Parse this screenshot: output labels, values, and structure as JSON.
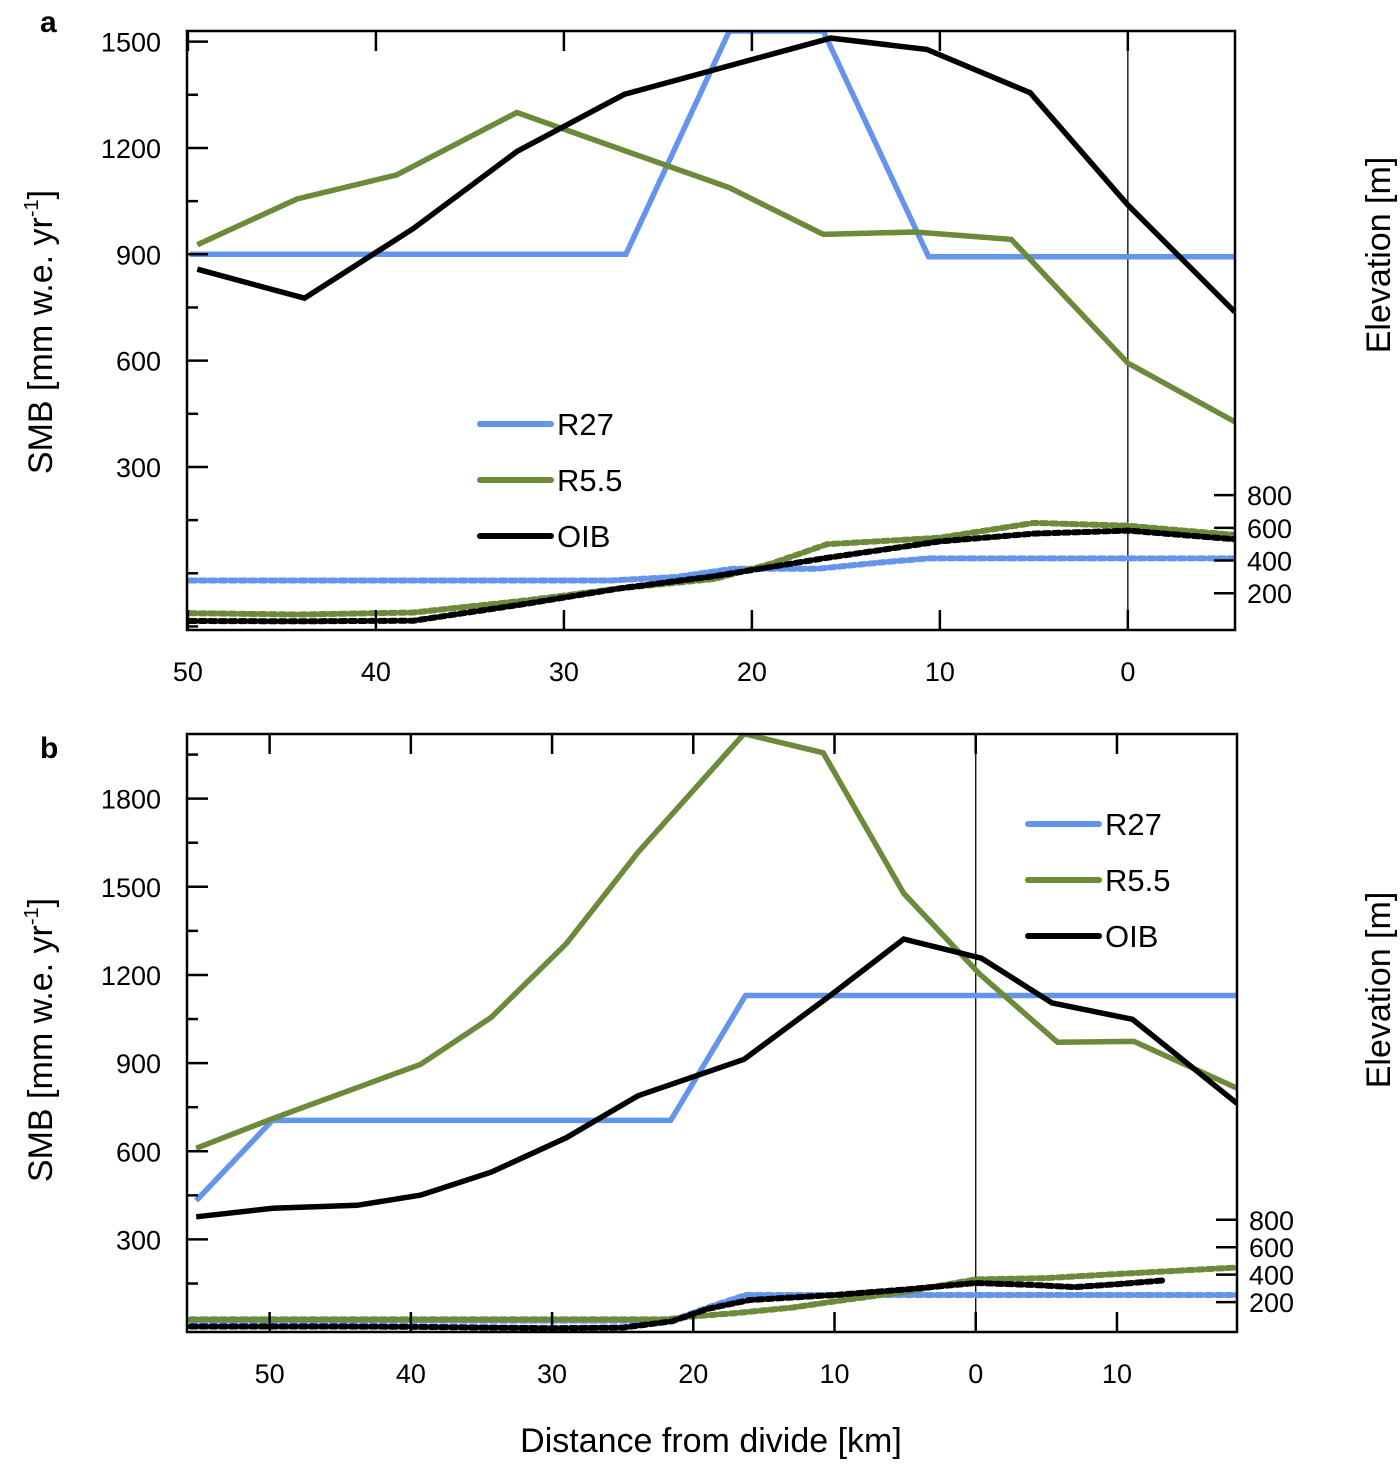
{
  "colors": {
    "R27": "#6495ED",
    "R5.5": "#6B8A3A",
    "OIB": "#000000"
  },
  "chart_data": [
    {
      "panel": "a",
      "type": "line",
      "xlabel": "",
      "ylabel": "SMB [mm w.e. yr",
      "ylabel_sup": "-1",
      "ylabel_close": "]",
      "y2label": "Elevation [m]",
      "x_note": "x = distance from divide in km; positive to the left of the divide line, negative to the right",
      "xlim": [
        50.05,
        -5.7
      ],
      "ylim": [
        -160,
        1530
      ],
      "y2lim": [
        -25,
        3640
      ],
      "xticks": [
        {
          "value": 50,
          "label": "50"
        },
        {
          "value": 40,
          "label": "40"
        },
        {
          "value": 30,
          "label": "30"
        },
        {
          "value": 20,
          "label": "20"
        },
        {
          "value": 10,
          "label": "10"
        },
        {
          "value": 0,
          "label": "0"
        }
      ],
      "yticks": [
        300,
        600,
        900,
        1200,
        1500
      ],
      "yminor": 150,
      "y2ticks": [
        200,
        400,
        600,
        800
      ],
      "divide_x": 0,
      "legend": {
        "position": "center-left",
        "entries": [
          "R27",
          "R5.5",
          "OIB"
        ]
      },
      "series": [
        {
          "name": "R27",
          "axis": "smb",
          "style": "solid",
          "x": [
            49.9,
            26.7,
            21.2,
            16.2,
            10.6,
            -5.7
          ],
          "y": [
            900,
            900,
            1530,
            1530,
            893,
            893
          ]
        },
        {
          "name": "R5.5",
          "axis": "smb",
          "style": "solid",
          "x": [
            49.5,
            44.2,
            38.9,
            32.5,
            21.2,
            16.2,
            11.3,
            6.2,
            0.0,
            -5.7
          ],
          "y": [
            927,
            1056,
            1124,
            1300,
            1088,
            956,
            963,
            942,
            593,
            427
          ]
        },
        {
          "name": "OIB",
          "axis": "smb",
          "style": "solid",
          "x": [
            49.5,
            43.8,
            38.0,
            32.5,
            26.8,
            15.8,
            10.7,
            5.2,
            0.0,
            -5.7
          ],
          "y": [
            858,
            776,
            973,
            1190,
            1351,
            1510,
            1478,
            1356,
            1039,
            737
          ]
        },
        {
          "name": "R27",
          "axis": "elevation",
          "style": "dashed",
          "x": [
            49.9,
            27.5,
            24.0,
            21.0,
            16.5,
            13.0,
            10.6,
            -5.7
          ],
          "y": [
            278,
            278,
            300,
            350,
            350,
            390,
            413,
            413
          ]
        },
        {
          "name": "R5.5",
          "axis": "elevation",
          "style": "dashed",
          "x": [
            49.9,
            44.0,
            38.0,
            32.0,
            27.0,
            22.0,
            19.0,
            16.0,
            10.0,
            5.0,
            0.0,
            -5.7
          ],
          "y": [
            78,
            70,
            82,
            156,
            230,
            287,
            380,
            500,
            540,
            630,
            613,
            556
          ]
        },
        {
          "name": "OIB",
          "axis": "elevation",
          "style": "dashed",
          "x": [
            49.9,
            44.0,
            38.0,
            32.0,
            27.0,
            22.0,
            16.0,
            10.0,
            5.0,
            0.0,
            -5.7
          ],
          "y": [
            30,
            28,
            32,
            135,
            230,
            304,
            417,
            517,
            565,
            583,
            530
          ]
        }
      ]
    },
    {
      "panel": "b",
      "type": "line",
      "xlabel": "Distance from divide [km]",
      "ylabel": "SMB [mm w.e. yr",
      "ylabel_sup": "-1",
      "ylabel_close": "]",
      "y2label": "Elevation [m]",
      "x_note": "x = distance from divide in km; positive to the left of the divide line, negative to the right",
      "xlim": [
        55.85,
        -18.5
      ],
      "ylim": [
        -15,
        2020
      ],
      "y2lim": [
        -18,
        4340
      ],
      "xticks": [
        {
          "value": 50,
          "label": "50"
        },
        {
          "value": 40,
          "label": "40"
        },
        {
          "value": 30,
          "label": "30"
        },
        {
          "value": 20,
          "label": "20"
        },
        {
          "value": 10,
          "label": "10"
        },
        {
          "value": 0,
          "label": "0"
        },
        {
          "value": -10,
          "label": "10"
        }
      ],
      "yticks": [
        300,
        600,
        900,
        1200,
        1500,
        1800
      ],
      "yminor": 150,
      "y2ticks": [
        200,
        400,
        600,
        800
      ],
      "divide_x": 0,
      "legend": {
        "position": "upper-right",
        "entries": [
          "R27",
          "R5.5",
          "OIB"
        ]
      },
      "series": [
        {
          "name": "R27",
          "axis": "smb",
          "style": "solid",
          "x": [
            55.2,
            49.8,
            21.6,
            16.3,
            -18.5
          ],
          "y": [
            432,
            705,
            705,
            1130,
            1130
          ]
        },
        {
          "name": "R5.5",
          "axis": "smb",
          "style": "solid",
          "x": [
            55.2,
            49.8,
            39.3,
            34.3,
            29.0,
            23.9,
            16.4,
            10.8,
            5.1,
            -0.3,
            -5.8,
            -11.2,
            -18.5
          ],
          "y": [
            610,
            711,
            896,
            1056,
            1306,
            1618,
            2021,
            1956,
            1478,
            1202,
            971,
            974,
            815
          ]
        },
        {
          "name": "OIB",
          "axis": "smb",
          "style": "solid",
          "x": [
            55.2,
            49.8,
            43.8,
            39.3,
            34.3,
            29.0,
            23.9,
            16.4,
            10.3,
            5.1,
            -0.4,
            -5.4,
            -11.1,
            -18.5
          ],
          "y": [
            377,
            406,
            416,
            451,
            529,
            646,
            789,
            913,
            1130,
            1322,
            1257,
            1105,
            1049,
            763
          ]
        },
        {
          "name": "R27",
          "axis": "elevation",
          "style": "dashed",
          "x": [
            55.6,
            21.5,
            19.0,
            16.3,
            10.0,
            0.0,
            -18.5
          ],
          "y": [
            65,
            65,
            160,
            252,
            252,
            252,
            252
          ]
        },
        {
          "name": "R5.5",
          "axis": "elevation",
          "style": "dashed",
          "x": [
            55.6,
            22.0,
            20.0,
            17.0,
            13.0,
            10.0,
            5.0,
            0.0,
            -5.0,
            -10.0,
            -18.5
          ],
          "y": [
            74,
            74,
            96,
            120,
            160,
            205,
            275,
            365,
            375,
            405,
            452
          ]
        },
        {
          "name": "OIB",
          "axis": "elevation",
          "style": "dashed",
          "x": [
            55.6,
            45.0,
            40.0,
            30.0,
            25.0,
            21.5,
            19.0,
            16.0,
            10.0,
            5.0,
            0.0,
            -4.0,
            -7.0,
            -10.0,
            -13.2
          ],
          "y": [
            22,
            22,
            20,
            10,
            14,
            60,
            150,
            215,
            252,
            292,
            339,
            325,
            309,
            330,
            357
          ]
        }
      ]
    }
  ]
}
